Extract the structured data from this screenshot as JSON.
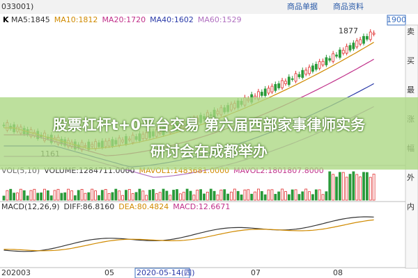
{
  "header": {
    "code": "033001)",
    "tabs": [
      "商品单据",
      "商品资料"
    ],
    "price_box": "1900"
  },
  "main_panel": {
    "label": "K",
    "indicators": [
      "MA5:1845",
      "MA10:1812",
      "MA20:1720",
      "MA40:1602",
      "MA60:1529"
    ],
    "high_label": "1877",
    "low_label": "1161"
  },
  "volume_panel": {
    "indicators": [
      "VOL(5,10)",
      "VOLUME:1284711.0000",
      "MAVOL1:1483681.0000",
      "MAVOL2:1801807.8000"
    ]
  },
  "macd_panel": {
    "indicators": [
      "MACD(12,26,9)",
      "DIFF:86.8160",
      "DEA:80.4824",
      "MACD:12.6671"
    ]
  },
  "x_axis": {
    "labels": [
      "202003",
      "05",
      "2020-05-14(四)",
      "07",
      "08"
    ]
  },
  "side_panel": {
    "labels": [
      "卖",
      "买",
      "最",
      "涨",
      "幅",
      "外",
      "内"
    ]
  },
  "banner": {
    "lines": [
      "股票杠杆t+0平台交易 第六届西部家事律师实务",
      "研讨会在成都举办"
    ]
  }
}
